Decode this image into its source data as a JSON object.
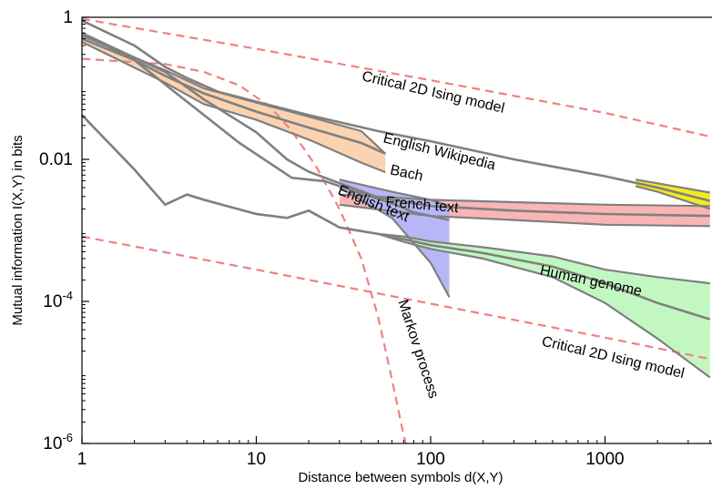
{
  "chart_data": {
    "type": "line",
    "title": "",
    "xlabel": "Distance between symbols d(X,Y)",
    "ylabel": "Mutual information I(X,Y) in bits",
    "x_scale": "log",
    "y_scale": "log",
    "xlim": [
      1,
      4000
    ],
    "ylim": [
      1e-06,
      1
    ],
    "grid": false,
    "legend": "none",
    "x_ticks": [
      {
        "value": 1,
        "label": "1"
      },
      {
        "value": 10,
        "label": "10"
      },
      {
        "value": 100,
        "label": "100"
      },
      {
        "value": 1000,
        "label": "1000"
      }
    ],
    "y_ticks": [
      {
        "value": 1,
        "base": "1",
        "exp": ""
      },
      {
        "value": 0.01,
        "base": "0.01",
        "exp": ""
      },
      {
        "value": 0.0001,
        "base": "10",
        "exp": "-4"
      },
      {
        "value": 1e-06,
        "base": "10",
        "exp": "-6"
      }
    ],
    "series": [
      {
        "name": "Critical 2D Ising model",
        "style": "dashed",
        "color": "#f08080",
        "points": [
          [
            1,
            0.95
          ],
          [
            10,
            0.36
          ],
          [
            100,
            0.13
          ],
          [
            1000,
            0.045
          ],
          [
            4000,
            0.021
          ]
        ]
      },
      {
        "name": "Critical 2D Ising model",
        "style": "dashed",
        "color": "#f08080",
        "points": [
          [
            1,
            0.00082
          ],
          [
            10,
            0.00028
          ],
          [
            100,
            9.3e-05
          ],
          [
            1000,
            3.1e-05
          ],
          [
            4000,
            1.55e-05
          ]
        ]
      },
      {
        "name": "Markov process",
        "style": "dashed",
        "color": "#f08080",
        "points": [
          [
            1,
            0.26
          ],
          [
            3,
            0.22
          ],
          [
            5,
            0.17
          ],
          [
            8,
            0.11
          ],
          [
            12,
            0.055
          ],
          [
            16,
            0.025
          ],
          [
            22,
            0.008
          ],
          [
            30,
            0.002
          ],
          [
            40,
            0.0004
          ],
          [
            50,
            6e-05
          ],
          [
            60,
            8e-06
          ],
          [
            70,
            1.3e-06
          ],
          [
            75,
            7e-07
          ]
        ]
      },
      {
        "name": "English Wikipedia",
        "style": "solid",
        "color": "#808080",
        "band_color": "#f2ec1f",
        "points": [
          [
            1,
            0.9
          ],
          [
            2,
            0.4
          ],
          [
            3,
            0.2
          ],
          [
            4,
            0.14
          ],
          [
            6,
            0.09
          ],
          [
            10,
            0.065
          ],
          [
            20,
            0.042
          ],
          [
            50,
            0.025
          ],
          [
            100,
            0.018
          ],
          [
            300,
            0.01
          ],
          [
            1000,
            0.0058
          ],
          [
            2000,
            0.004
          ],
          [
            4000,
            0.0026
          ]
        ],
        "upper": [
          [
            1500,
            0.0052
          ],
          [
            2000,
            0.0046
          ],
          [
            4000,
            0.0034
          ]
        ],
        "lower": [
          [
            1500,
            0.0042
          ],
          [
            2000,
            0.0035
          ],
          [
            4000,
            0.002
          ]
        ]
      },
      {
        "name": "French text",
        "style": "solid",
        "color": "#808080",
        "band_color": "#f9b5b5",
        "points": [
          [
            1,
            0.6
          ],
          [
            3,
            0.17
          ],
          [
            5,
            0.07
          ],
          [
            10,
            0.024
          ],
          [
            15,
            0.01
          ],
          [
            20,
            0.0067
          ],
          [
            50,
            0.0029
          ],
          [
            100,
            0.0022
          ],
          [
            300,
            0.0019
          ],
          [
            1000,
            0.0017
          ],
          [
            4000,
            0.0016
          ]
        ],
        "upper": [
          [
            30,
            0.0032
          ],
          [
            100,
            0.0027
          ],
          [
            300,
            0.0025
          ],
          [
            1000,
            0.0023
          ],
          [
            4000,
            0.0022
          ]
        ],
        "lower": [
          [
            30,
            0.0023
          ],
          [
            100,
            0.0016
          ],
          [
            300,
            0.0014
          ],
          [
            1000,
            0.0012
          ],
          [
            4000,
            0.00115
          ]
        ]
      },
      {
        "name": "Bach",
        "style": "solid",
        "color": "#808080",
        "band_color": "#fcd3b0",
        "points": [
          [
            1,
            0.5
          ],
          [
            2,
            0.25
          ],
          [
            3,
            0.15
          ],
          [
            5,
            0.085
          ],
          [
            10,
            0.047
          ],
          [
            20,
            0.028
          ],
          [
            40,
            0.017
          ],
          [
            55,
            0.012
          ]
        ],
        "upper": [
          [
            1,
            0.55
          ],
          [
            3,
            0.18
          ],
          [
            5,
            0.1
          ],
          [
            10,
            0.063
          ],
          [
            20,
            0.04
          ],
          [
            40,
            0.025
          ],
          [
            55,
            0.012
          ]
        ],
        "lower": [
          [
            1,
            0.45
          ],
          [
            3,
            0.12
          ],
          [
            5,
            0.06
          ],
          [
            10,
            0.036
          ],
          [
            20,
            0.019
          ],
          [
            40,
            0.009
          ],
          [
            55,
            0.0066
          ]
        ]
      },
      {
        "name": "English text",
        "style": "solid",
        "color": "#808080",
        "band_color": "#b7b7f7",
        "points": [
          [
            1,
            0.6
          ],
          [
            2,
            0.25
          ],
          [
            4,
            0.065
          ],
          [
            8,
            0.017
          ],
          [
            16,
            0.0055
          ],
          [
            25,
            0.0049
          ],
          [
            40,
            0.0033
          ],
          [
            60,
            0.0024
          ],
          [
            80,
            0.0018
          ],
          [
            100,
            0.0016
          ],
          [
            128,
            0.0014
          ]
        ],
        "upper": [
          [
            30,
            0.0052
          ],
          [
            60,
            0.0035
          ],
          [
            100,
            0.0027
          ],
          [
            128,
            0.0022
          ]
        ],
        "lower": [
          [
            30,
            0.004
          ],
          [
            60,
            0.0015
          ],
          [
            100,
            0.00035
          ],
          [
            128,
            0.000115
          ]
        ]
      },
      {
        "name": "Human genome",
        "style": "solid",
        "color": "#808080",
        "band_color": "#c2f7c2",
        "points": [
          [
            1,
            0.042
          ],
          [
            2,
            0.0072
          ],
          [
            3,
            0.0023
          ],
          [
            4,
            0.0032
          ],
          [
            5,
            0.0027
          ],
          [
            10,
            0.0017
          ],
          [
            15,
            0.0015
          ],
          [
            20,
            0.0019
          ],
          [
            30,
            0.0011
          ],
          [
            50,
            0.00089
          ],
          [
            70,
            0.00075
          ],
          [
            100,
            0.00062
          ],
          [
            200,
            0.00048
          ],
          [
            500,
            0.00031
          ],
          [
            1000,
            0.00018
          ],
          [
            2000,
            9.5e-05
          ],
          [
            4000,
            5.6e-05
          ]
        ],
        "upper": [
          [
            1,
            0.042
          ],
          [
            2,
            0.0072
          ],
          [
            3,
            0.0023
          ],
          [
            4,
            0.0032
          ],
          [
            5,
            0.0027
          ],
          [
            10,
            0.0017
          ],
          [
            15,
            0.0015
          ],
          [
            20,
            0.0019
          ],
          [
            30,
            0.0011
          ],
          [
            50,
            0.00089
          ],
          [
            70,
            0.00082
          ],
          [
            100,
            0.0007
          ],
          [
            200,
            0.00058
          ],
          [
            500,
            0.00043
          ],
          [
            1000,
            0.00028
          ],
          [
            2000,
            0.00022
          ],
          [
            4000,
            0.00018
          ]
        ],
        "lower": [
          [
            1,
            0.042
          ],
          [
            2,
            0.0072
          ],
          [
            3,
            0.0023
          ],
          [
            4,
            0.0032
          ],
          [
            5,
            0.0027
          ],
          [
            10,
            0.0017
          ],
          [
            15,
            0.0015
          ],
          [
            20,
            0.0019
          ],
          [
            30,
            0.0011
          ],
          [
            50,
            0.00089
          ],
          [
            70,
            0.00069
          ],
          [
            100,
            0.00055
          ],
          [
            200,
            0.0004
          ],
          [
            500,
            0.00022
          ],
          [
            1000,
            9.5e-05
          ],
          [
            2000,
            3e-05
          ],
          [
            4000,
            8.5e-06
          ]
        ]
      }
    ],
    "annotations": [
      {
        "text": "Critical 2D Ising model",
        "x": 40,
        "y": 0.13,
        "angle": 13
      },
      {
        "text": "English Wikipedia",
        "x": 53,
        "y": 0.0175,
        "angle": 14
      },
      {
        "text": "Bach",
        "x": 58,
        "y": 0.0062,
        "angle": 12
      },
      {
        "text": "English text",
        "x": 29,
        "y": 0.0033,
        "angle": 22
      },
      {
        "text": "French text",
        "x": 55,
        "y": 0.0022,
        "angle": 5
      },
      {
        "text": "Human genome",
        "x": 420,
        "y": 0.00024,
        "angle": 12
      },
      {
        "text": "Critical 2D Ising model",
        "x": 430,
        "y": 2.4e-05,
        "angle": 13
      },
      {
        "text": "Markov process",
        "x": 65,
        "y": 0.0001,
        "angle": 72
      }
    ]
  }
}
